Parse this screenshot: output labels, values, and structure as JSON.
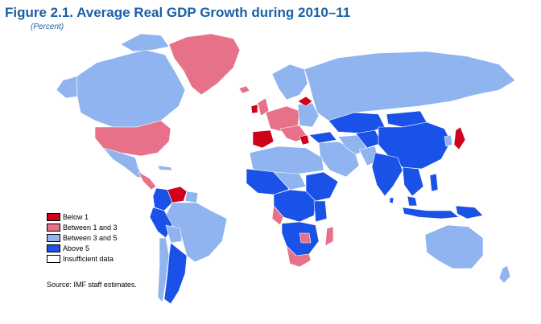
{
  "title": "Figure 2.1.  Average Real GDP Growth during 2010–11",
  "subtitle": "(Percent)",
  "colors": {
    "below_1": "#d0021b",
    "between_1_3": "#e8718a",
    "between_3_5": "#8fb4f0",
    "above_5": "#1a52e8",
    "insufficient": "#ffffff"
  },
  "legend": [
    {
      "label": "Below 1",
      "color": "#d0021b"
    },
    {
      "label": "Between 1 and 3",
      "color": "#e8718a"
    },
    {
      "label": "Between 3 and 5",
      "color": "#8fb4f0"
    },
    {
      "label": "Above 5",
      "color": "#1a52e8"
    },
    {
      "label": "Insufficient data",
      "color": "#ffffff"
    }
  ],
  "source": "Source: IMF staff estimates."
}
